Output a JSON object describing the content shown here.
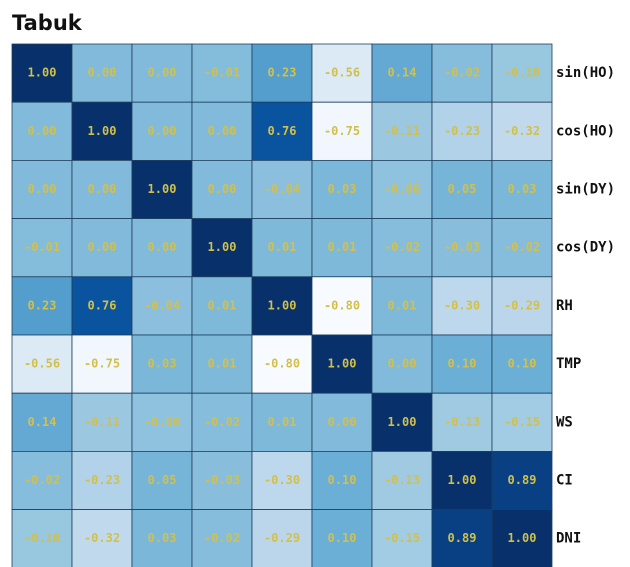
{
  "chart_data": {
    "type": "heatmap",
    "title": "Tabuk",
    "y_categories": [
      "sin(HO)",
      "cos(HO)",
      "sin(DY)",
      "cos(DY)",
      "RH",
      "TMP",
      "WS",
      "CI",
      "DNI"
    ],
    "values": [
      [
        1.0,
        0.0,
        0.0,
        -0.01,
        0.23,
        -0.56,
        0.14,
        -0.02,
        -0.1
      ],
      [
        0.0,
        1.0,
        0.0,
        0.0,
        0.76,
        -0.75,
        -0.11,
        -0.23,
        -0.32
      ],
      [
        0.0,
        0.0,
        1.0,
        0.0,
        -0.04,
        0.03,
        -0.06,
        0.05,
        0.03
      ],
      [
        -0.01,
        0.0,
        0.0,
        1.0,
        0.01,
        0.01,
        -0.02,
        -0.03,
        -0.02
      ],
      [
        0.23,
        0.76,
        -0.04,
        0.01,
        1.0,
        -0.8,
        0.01,
        -0.3,
        -0.29
      ],
      [
        -0.56,
        -0.75,
        0.03,
        0.01,
        -0.8,
        1.0,
        0.0,
        0.1,
        0.1
      ],
      [
        0.14,
        -0.11,
        -0.06,
        -0.02,
        0.01,
        0.0,
        1.0,
        -0.13,
        -0.15
      ],
      [
        -0.02,
        -0.23,
        0.05,
        -0.03,
        -0.3,
        0.1,
        -0.13,
        1.0,
        0.89
      ],
      [
        -0.1,
        -0.32,
        0.03,
        -0.02,
        -0.29,
        0.1,
        -0.15,
        0.89,
        1.0
      ]
    ],
    "value_labels": [
      [
        "1.00",
        "0.00",
        "0.00",
        "-0.01",
        "0.23",
        "-0.56",
        "0.14",
        "-0.02",
        "-0.10"
      ],
      [
        "0.00",
        "1.00",
        "0.00",
        "0.00",
        "0.76",
        "-0.75",
        "-0.11",
        "-0.23",
        "-0.32"
      ],
      [
        "0.00",
        "0.00",
        "1.00",
        "0.00",
        "-0.04",
        "0.03",
        "-0.06",
        "0.05",
        "0.03"
      ],
      [
        "-0.01",
        "0.00",
        "0.00",
        "1.00",
        "0.01",
        "0.01",
        "-0.02",
        "-0.03",
        "-0.02"
      ],
      [
        "0.23",
        "0.76",
        "-0.04",
        "0.01",
        "1.00",
        "-0.80",
        "0.01",
        "-0.30",
        "-0.29"
      ],
      [
        "-0.56",
        "-0.75",
        "0.03",
        "0.01",
        "-0.80",
        "1.00",
        "0.00",
        "0.10",
        "0.10"
      ],
      [
        "0.14",
        "-0.11",
        "-0.06",
        "-0.02",
        "0.01",
        "0.00",
        "1.00",
        "-0.13",
        "-0.15"
      ],
      [
        "-0.02",
        "-0.23",
        "0.05",
        "-0.03",
        "-0.30",
        "0.10",
        "-0.13",
        "1.00",
        "0.89"
      ],
      [
        "-0.10",
        "-0.32",
        "0.03",
        "-0.02",
        "-0.29",
        "0.10",
        "-0.15",
        "0.89",
        "1.00"
      ]
    ],
    "colormap": "Blues",
    "clim": [
      -0.8,
      1
    ],
    "label_color": "#d2c04a"
  }
}
